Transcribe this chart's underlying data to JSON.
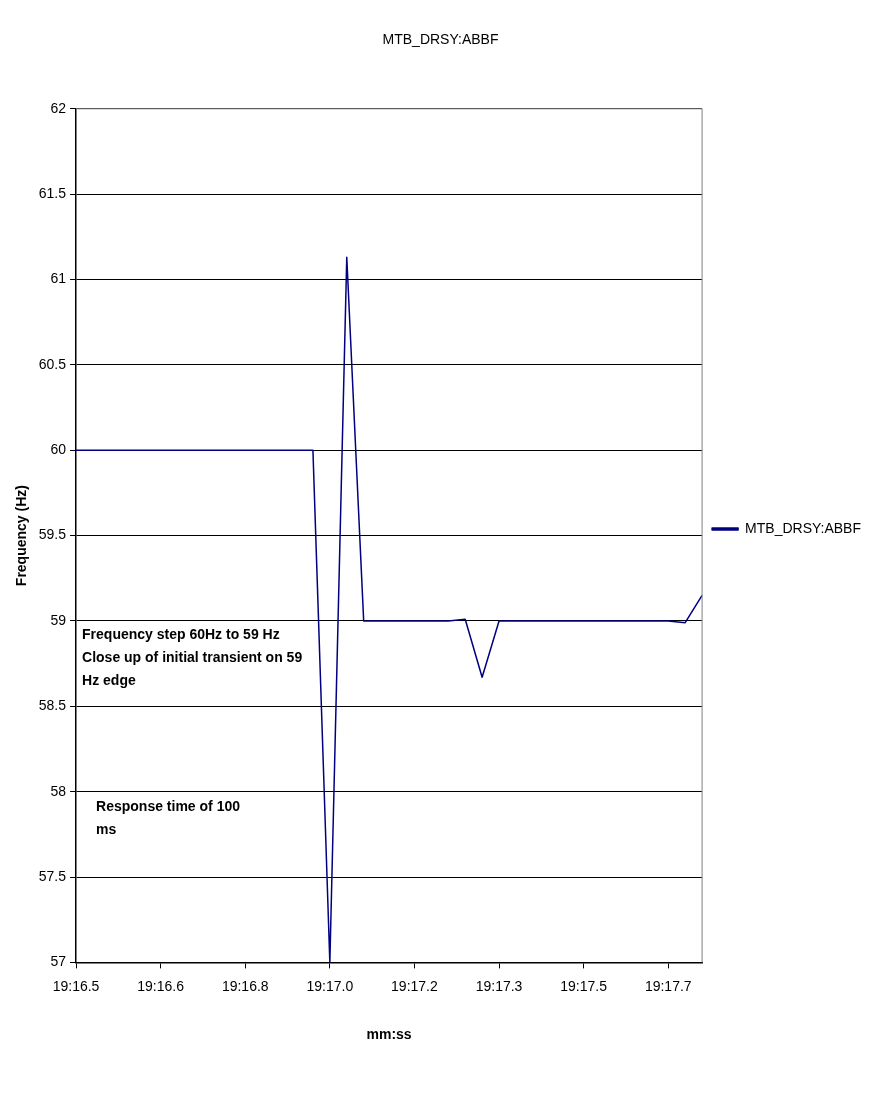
{
  "chart_data": {
    "type": "line",
    "title": "MTB_DRSY:ABBF",
    "xlabel": "mm:ss",
    "ylabel": "Frequency (Hz)",
    "categories": [
      "19:16.5",
      null,
      null,
      null,
      null,
      "19:16.6",
      null,
      null,
      null,
      null,
      "19:16.8",
      null,
      null,
      null,
      null,
      "19:17.0",
      null,
      null,
      null,
      null,
      "19:17.2",
      null,
      null,
      null,
      null,
      "19:17.3",
      null,
      null,
      null,
      null,
      "19:17.5",
      null,
      null,
      null,
      null,
      "19:17.7",
      null,
      null
    ],
    "series": [
      {
        "name": "MTB_DRSY:ABBF",
        "color": "#000080",
        "values": [
          60,
          60,
          60,
          60,
          60,
          60,
          60,
          60,
          60,
          60,
          60,
          60,
          60,
          60,
          60,
          57,
          61.13,
          59,
          59,
          59,
          59,
          59,
          59,
          59.01,
          58.67,
          59,
          59,
          59,
          59,
          59,
          59,
          59,
          59,
          59,
          59,
          59,
          58.99,
          59.15
        ]
      }
    ],
    "ylim": [
      57,
      62
    ],
    "yticks": [
      57,
      57.5,
      58,
      58.5,
      59,
      59.5,
      60,
      60.5,
      61,
      61.5,
      62
    ],
    "grid": "y",
    "legend": "right",
    "marker": "none",
    "line_style": "solid",
    "annotations": [
      "Frequency step 60Hz to 59 Hz\nClose up of initial transient on 59 Hz edge",
      "Response time of 100 ms"
    ]
  }
}
